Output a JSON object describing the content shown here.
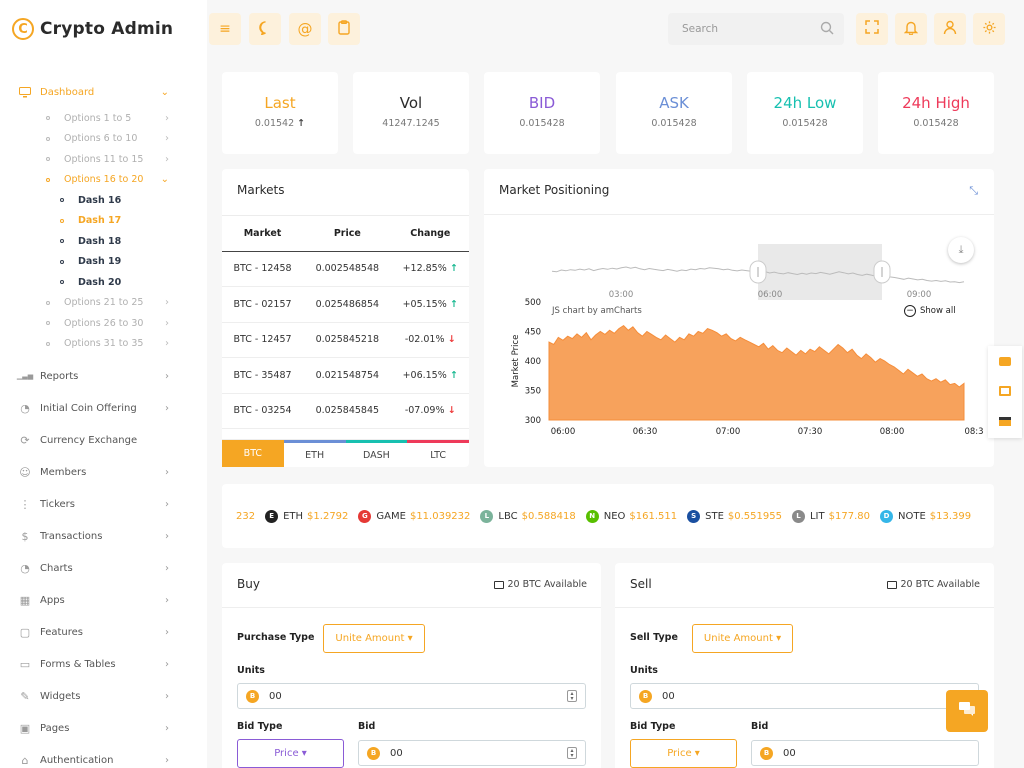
{
  "brand": {
    "logo": "C",
    "name": "Crypto Admin"
  },
  "sidebar": {
    "dashboard": "Dashboard",
    "options_a": [
      "Options 1 to 5",
      "Options 6 to 10",
      "Options 11 to 15"
    ],
    "options_active": "Options 16 to 20",
    "dashes": [
      "Dash 16",
      "Dash 17",
      "Dash 18",
      "Dash 19",
      "Dash 20"
    ],
    "options_b": [
      "Options 21 to 25",
      "Options 26 to 30",
      "Options 31 to 35"
    ],
    "items": [
      {
        "label": "Reports",
        "icon": "bar-chart-icon",
        "chev": true
      },
      {
        "label": "Initial Coin Offering",
        "icon": "pie-chart-icon",
        "chev": true
      },
      {
        "label": "Currency Exchange",
        "icon": "refresh-icon",
        "chev": false
      },
      {
        "label": "Members",
        "icon": "users-icon",
        "chev": true
      },
      {
        "label": "Tickers",
        "icon": "sliders-icon",
        "chev": true
      },
      {
        "label": "Transactions",
        "icon": "dollar-icon",
        "chev": true
      },
      {
        "label": "Charts",
        "icon": "pie-chart-icon",
        "chev": true
      },
      {
        "label": "Apps",
        "icon": "grid-icon",
        "chev": true
      },
      {
        "label": "Features",
        "icon": "box-icon",
        "chev": true
      },
      {
        "label": "Forms & Tables",
        "icon": "inbox-icon",
        "chev": true
      },
      {
        "label": "Widgets",
        "icon": "edit-icon",
        "chev": true
      },
      {
        "label": "Pages",
        "icon": "image-icon",
        "chev": true
      },
      {
        "label": "Authentication",
        "icon": "lock-icon",
        "chev": true
      }
    ]
  },
  "header": {
    "search_placeholder": "Search"
  },
  "stats": [
    {
      "label": "Last",
      "value": "0.01542",
      "color": "#f5a623",
      "arrow": "↑"
    },
    {
      "label": "Vol",
      "value": "41247.1245",
      "color": "#2b2b2b",
      "arrow": ""
    },
    {
      "label": "BID",
      "value": "0.015428",
      "color": "#8a5bd6",
      "arrow": ""
    },
    {
      "label": "ASK",
      "value": "0.015428",
      "color": "#6b8fd6",
      "arrow": ""
    },
    {
      "label": "24h Low",
      "value": "0.015428",
      "color": "#17c0b0",
      "arrow": ""
    },
    {
      "label": "24h High",
      "value": "0.015428",
      "color": "#ee3a5a",
      "arrow": ""
    }
  ],
  "markets": {
    "title": "Markets",
    "headers": [
      "Market",
      "Price",
      "Change"
    ],
    "rows": [
      {
        "market": "BTC - 12458",
        "price": "0.002548548",
        "change": "+12.85%",
        "dir": "up"
      },
      {
        "market": "BTC - 02157",
        "price": "0.025486854",
        "change": "+05.15%",
        "dir": "up"
      },
      {
        "market": "BTC - 12457",
        "price": "0.025845218",
        "change": "-02.01%",
        "dir": "down"
      },
      {
        "market": "BTC - 35487",
        "price": "0.021548754",
        "change": "+06.15%",
        "dir": "up"
      },
      {
        "market": "BTC - 03254",
        "price": "0.025845845",
        "change": "-07.09%",
        "dir": "down"
      }
    ],
    "tabs": [
      "BTC",
      "ETH",
      "DASH",
      "LTC"
    ]
  },
  "positioning": {
    "title": "Market Positioning",
    "credit": "JS chart by amCharts",
    "show_all": "Show all"
  },
  "chart_data": {
    "type": "area",
    "ylabel": "Market Price",
    "ylim": [
      300,
      500
    ],
    "yticks": [
      "500",
      "450",
      "400",
      "350",
      "300"
    ],
    "xticks": [
      "06:00",
      "06:30",
      "07:00",
      "07:30",
      "08:00",
      "08:3"
    ],
    "scroll_xticks": [
      "03:00",
      "06:00",
      "09:00"
    ],
    "values": [
      432,
      428,
      440,
      435,
      442,
      438,
      446,
      440,
      448,
      436,
      444,
      450,
      445,
      452,
      447,
      455,
      460,
      452,
      458,
      448,
      442,
      450,
      445,
      440,
      436,
      444,
      438,
      432,
      440,
      436,
      446,
      442,
      450,
      447,
      455,
      452,
      448,
      442,
      446,
      438,
      434,
      440,
      436,
      432,
      428,
      424,
      430,
      420,
      426,
      418,
      414,
      422,
      416,
      410,
      418,
      412,
      420,
      416,
      424,
      418,
      412,
      420,
      428,
      422,
      414,
      420,
      410,
      404,
      412,
      406,
      398,
      404,
      400,
      394,
      390,
      384,
      378,
      386,
      380,
      374,
      378,
      370,
      366,
      370,
      364,
      368,
      360,
      362,
      356,
      362
    ],
    "color": "#f7a25c"
  },
  "ticker": [
    {
      "sym": "",
      "price": "232",
      "icon": "",
      "color": ""
    },
    {
      "sym": "ETH",
      "price": "$1.2792",
      "icon": "E",
      "color": "#222222"
    },
    {
      "sym": "GAME",
      "price": "$11.039232",
      "icon": "G",
      "color": "#e53935"
    },
    {
      "sym": "LBC",
      "price": "$0.588418",
      "icon": "L",
      "color": "#7bb39b"
    },
    {
      "sym": "NEO",
      "price": "$161.511",
      "icon": "N",
      "color": "#58bf00"
    },
    {
      "sym": "STE",
      "price": "$0.551955",
      "icon": "S",
      "color": "#1a4fa0"
    },
    {
      "sym": "LIT",
      "price": "$177.80",
      "icon": "L",
      "color": "#8a8a8a"
    },
    {
      "sym": "NOTE",
      "price": "$13.399",
      "icon": "D",
      "color": "#35b6e8"
    }
  ],
  "buy": {
    "title": "Buy",
    "available": "20 BTC Available",
    "type_label": "Purchase Type",
    "type_value": "Unite Amount ▾",
    "units_label": "Units",
    "units_value": "00",
    "bidtype_label": "Bid Type",
    "bidtype_value": "Price ▾",
    "bid_label": "Bid",
    "bid_value": "00",
    "coin": "B"
  },
  "sell": {
    "title": "Sell",
    "available": "20 BTC Available",
    "type_label": "Sell Type",
    "type_value": "Unite Amount ▾",
    "units_label": "Units",
    "units_value": "00",
    "bidtype_label": "Bid Type",
    "bidtype_value": "Price ▾",
    "bid_label": "Bid",
    "bid_value": "00",
    "coin": "B"
  }
}
